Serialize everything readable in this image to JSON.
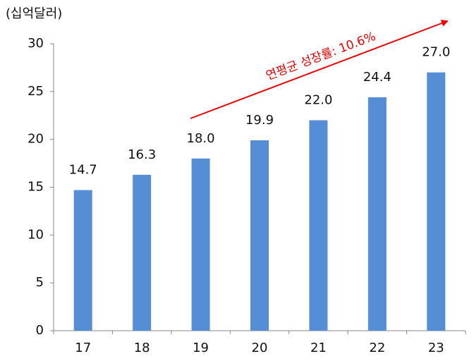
{
  "chart_data": {
    "type": "bar",
    "y_axis_label": "(십억달러)",
    "annotation": "연평균 성장률: 10.6%",
    "categories": [
      "17",
      "18",
      "19",
      "20",
      "21",
      "22",
      "23"
    ],
    "values": [
      14.7,
      16.3,
      18.0,
      19.9,
      22.0,
      24.4,
      27.0
    ],
    "value_labels": [
      "14.7",
      "16.3",
      "18.0",
      "19.9",
      "22.0",
      "24.4",
      "27.0"
    ],
    "color": "#558ed5",
    "ylim": [
      0,
      30
    ],
    "yticks": [
      0,
      5,
      10,
      15,
      20,
      25,
      30
    ],
    "grid": false
  }
}
